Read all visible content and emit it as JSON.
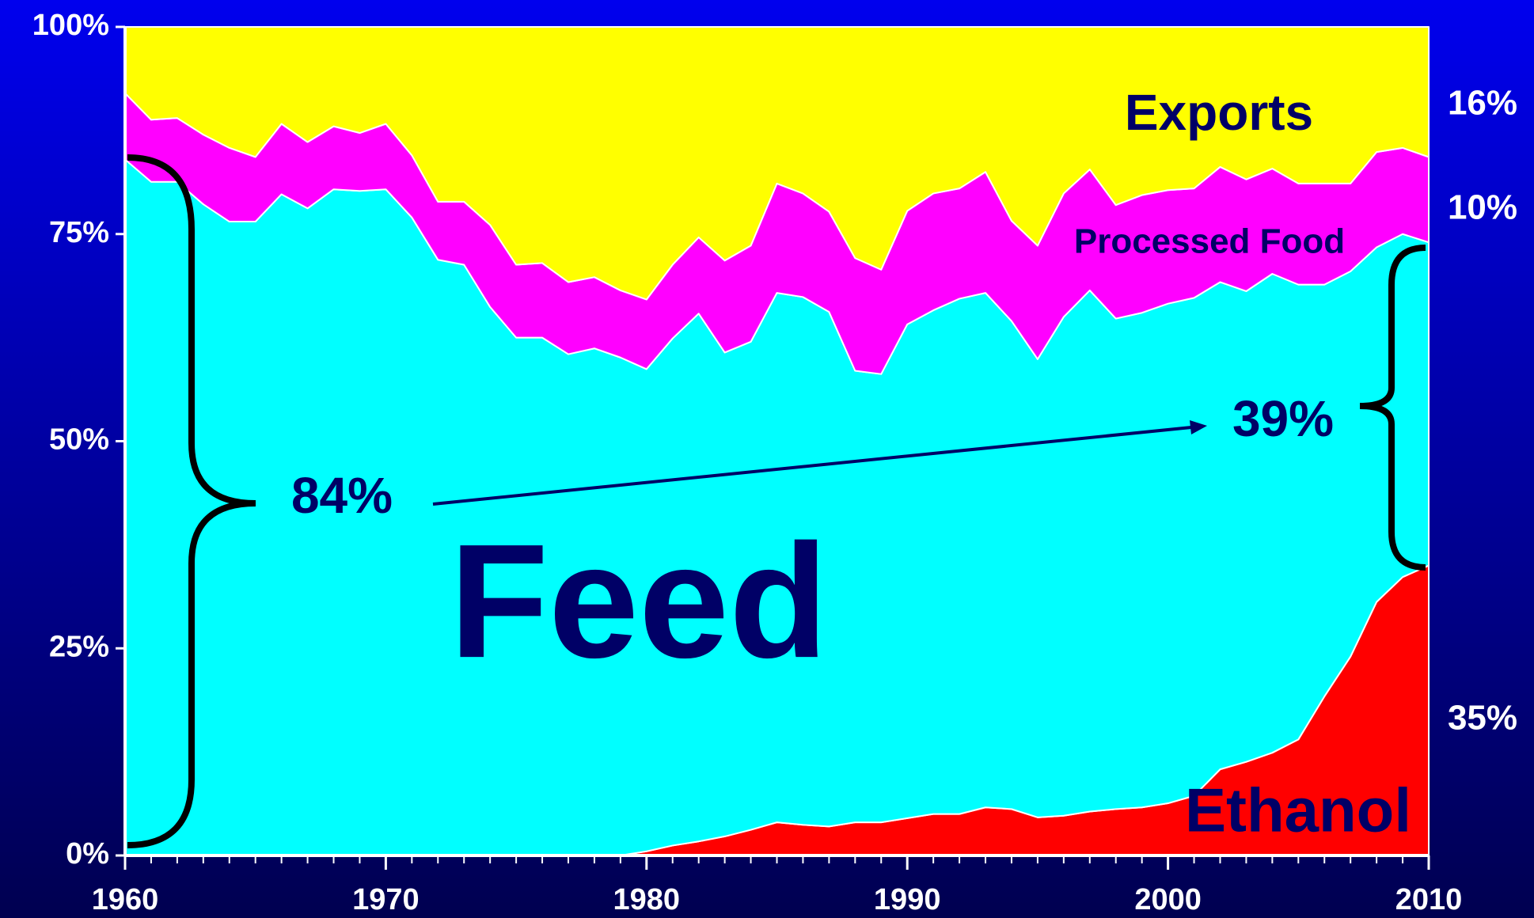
{
  "chart_data": {
    "type": "stacked_area",
    "x": [
      1960,
      1961,
      1962,
      1963,
      1964,
      1965,
      1966,
      1967,
      1968,
      1969,
      1970,
      1971,
      1972,
      1973,
      1974,
      1975,
      1976,
      1977,
      1978,
      1979,
      1980,
      1981,
      1982,
      1983,
      1984,
      1985,
      1986,
      1987,
      1988,
      1989,
      1990,
      1991,
      1992,
      1993,
      1994,
      1995,
      1996,
      1997,
      1998,
      1999,
      2000,
      2001,
      2002,
      2003,
      2004,
      2005,
      2006,
      2007,
      2008,
      2009,
      2010
    ],
    "series": [
      {
        "name": "Ethanol",
        "color": "#ff0000",
        "values": [
          0,
          0,
          0,
          0,
          0,
          0,
          0,
          0,
          0,
          0,
          0,
          0,
          0,
          0,
          0,
          0,
          0,
          0,
          0,
          0,
          0.5,
          1.2,
          1.7,
          2.3,
          3.1,
          4.0,
          3.7,
          3.5,
          4.0,
          4.0,
          4.5,
          5.0,
          5.0,
          5.8,
          5.6,
          4.6,
          4.8,
          5.3,
          5.6,
          5.8,
          6.3,
          7.2,
          10.4,
          11.3,
          12.4,
          14.0,
          19.2,
          24.0,
          30.6,
          33.6,
          35.0
        ]
      },
      {
        "name": "Feed",
        "color": "#00ffff",
        "values": [
          84,
          81.3,
          81.3,
          78.6,
          76.5,
          76.5,
          79.8,
          78.1,
          80.4,
          80.2,
          80.4,
          77,
          71.9,
          71.3,
          66.2,
          62.5,
          62.5,
          60.5,
          61.2,
          60.1,
          58.2,
          61.2,
          63.7,
          58.4,
          58.9,
          63.9,
          63.7,
          62.1,
          54.5,
          54.1,
          59.6,
          60.8,
          62.2,
          62.1,
          58.9,
          55.3,
          60.2,
          62.9,
          59.2,
          59.7,
          60.3,
          60.1,
          58.8,
          56.8,
          57.8,
          54.9,
          49.7,
          46.5,
          42.8,
          41.4,
          39
        ]
      },
      {
        "name": "Processed Food",
        "color": "#ff00ff",
        "values": [
          8,
          7.5,
          7.7,
          8.4,
          8.9,
          7.8,
          8.5,
          8.0,
          7.6,
          7.0,
          7.9,
          7.5,
          7.0,
          7.6,
          9.9,
          8.8,
          9.0,
          8.7,
          8.6,
          8.1,
          8.4,
          8.9,
          9.2,
          11.1,
          11.6,
          13.2,
          12.5,
          12.1,
          13.6,
          12.6,
          13.7,
          14.1,
          13.3,
          14.6,
          12.1,
          13.7,
          14.9,
          14.6,
          13.7,
          14.2,
          13.7,
          13.2,
          13.9,
          13.5,
          12.7,
          12.2,
          12.2,
          10.6,
          11.5,
          10.4,
          10.3
        ]
      },
      {
        "name": "Exports",
        "color": "#ffff00",
        "values": [
          8,
          11.2,
          11,
          13,
          14.6,
          15.7,
          11.7,
          13.9,
          12,
          12.8,
          11.7,
          15.5,
          21.1,
          21.1,
          23.9,
          28.7,
          28.5,
          30.8,
          30.2,
          31.8,
          32.9,
          28.7,
          25.4,
          28.2,
          26.4,
          18.9,
          20.1,
          22.3,
          27.9,
          29.3,
          22.2,
          20.1,
          19.5,
          17.5,
          23.4,
          26.4,
          20.1,
          17.2,
          21.5,
          20.3,
          19.7,
          19.5,
          16.9,
          18.4,
          17.1,
          18.9,
          18.9,
          18.9,
          15.1,
          14.6,
          15.7
        ]
      }
    ],
    "xlim": [
      1960,
      2010
    ],
    "xticks": [
      1960,
      1970,
      1980,
      1990,
      2000,
      2010
    ],
    "ylim": [
      0,
      100
    ],
    "yticks": [
      {
        "value": 0,
        "label": "0%"
      },
      {
        "value": 25,
        "label": "25%"
      },
      {
        "value": 50,
        "label": "50%"
      },
      {
        "value": 75,
        "label": "75%"
      },
      {
        "value": 100,
        "label": "100%"
      }
    ],
    "annotations": {
      "feed_1960": "84%",
      "feed_2010": "39%",
      "exports_2010": "16%",
      "processed_2010": "10%",
      "ethanol_2010": "35%"
    }
  }
}
